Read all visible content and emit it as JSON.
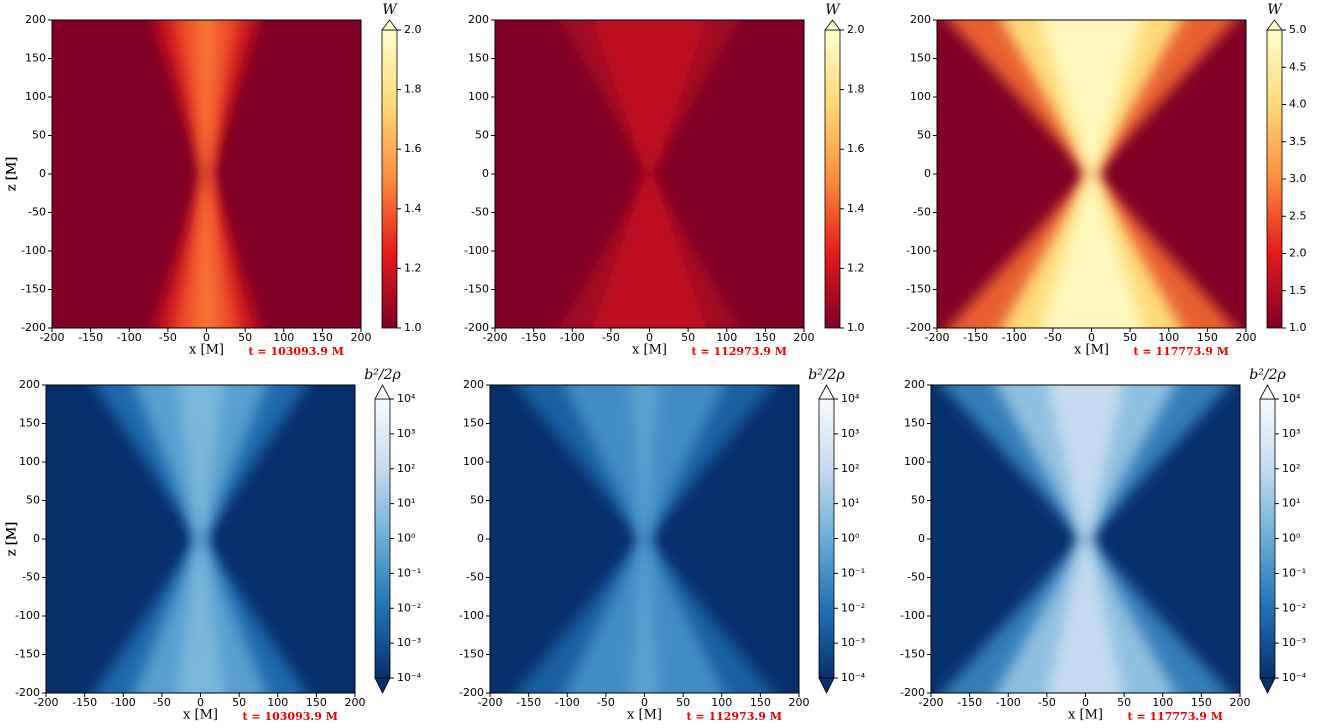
{
  "chart_data": [
    {
      "type": "image",
      "xlabel": "x [M]",
      "ylabel": "z [M]",
      "annotation": "t = 103093.9 M",
      "xlim": [
        -200,
        200
      ],
      "ylim": [
        -200,
        200
      ],
      "xticks": [
        -200,
        -150,
        -100,
        -50,
        0,
        50,
        100,
        150,
        200
      ],
      "yticks": [
        -200,
        -150,
        -100,
        -50,
        0,
        50,
        100,
        150,
        200
      ],
      "colorbar": {
        "label": "W",
        "lim": [
          1.0,
          2.0
        ],
        "log": false,
        "extend": "max",
        "colors": [
          "#800026",
          "#e31a1c",
          "#fd8d3c",
          "#fed976",
          "#ffffcc"
        ],
        "ticks": [
          {
            "value": 1.0,
            "label": "1.0"
          },
          {
            "value": 1.2,
            "label": "1.2"
          },
          {
            "value": 1.4,
            "label": "1.4"
          },
          {
            "value": 1.6,
            "label": "1.6"
          },
          {
            "value": 1.8,
            "label": "1.8"
          },
          {
            "value": 2.0,
            "label": "2.0"
          }
        ]
      }
    },
    {
      "type": "image",
      "xlabel": "x [M]",
      "ylabel": "z [M]",
      "annotation": "t = 112973.9 M",
      "xlim": [
        -200,
        200
      ],
      "ylim": [
        -200,
        200
      ],
      "xticks": [
        -200,
        -150,
        -100,
        -50,
        0,
        50,
        100,
        150,
        200
      ],
      "yticks": [
        -200,
        -150,
        -100,
        -50,
        0,
        50,
        100,
        150,
        200
      ],
      "colorbar": {
        "label": "W",
        "lim": [
          1.0,
          2.0
        ],
        "log": false,
        "extend": "max",
        "colors": [
          "#800026",
          "#e31a1c",
          "#fd8d3c",
          "#fed976",
          "#ffffcc"
        ],
        "ticks": [
          {
            "value": 1.0,
            "label": "1.0"
          },
          {
            "value": 1.2,
            "label": "1.2"
          },
          {
            "value": 1.4,
            "label": "1.4"
          },
          {
            "value": 1.6,
            "label": "1.6"
          },
          {
            "value": 1.8,
            "label": "1.8"
          },
          {
            "value": 2.0,
            "label": "2.0"
          }
        ]
      }
    },
    {
      "type": "image",
      "xlabel": "x [M]",
      "ylabel": "z [M]",
      "annotation": "t = 117773.9 M",
      "xlim": [
        -200,
        200
      ],
      "ylim": [
        -200,
        200
      ],
      "xticks": [
        -200,
        -150,
        -100,
        -50,
        0,
        50,
        100,
        150,
        200
      ],
      "yticks": [
        -200,
        -150,
        -100,
        -50,
        0,
        50,
        100,
        150,
        200
      ],
      "colorbar": {
        "label": "W",
        "lim": [
          1.0,
          5.0
        ],
        "log": false,
        "extend": "max",
        "colors": [
          "#800026",
          "#e31a1c",
          "#fd8d3c",
          "#fed976",
          "#ffffcc"
        ],
        "ticks": [
          {
            "value": 1.0,
            "label": "1.0"
          },
          {
            "value": 1.5,
            "label": "1.5"
          },
          {
            "value": 2.0,
            "label": "2.0"
          },
          {
            "value": 2.5,
            "label": "2.5"
          },
          {
            "value": 3.0,
            "label": "3.0"
          },
          {
            "value": 3.5,
            "label": "3.5"
          },
          {
            "value": 4.0,
            "label": "4.0"
          },
          {
            "value": 4.5,
            "label": "4.5"
          },
          {
            "value": 5.0,
            "label": "5.0"
          }
        ]
      }
    },
    {
      "type": "image",
      "xlabel": "x [M]",
      "ylabel": "z [M]",
      "annotation": "t = 103093.9 M",
      "xlim": [
        -200,
        200
      ],
      "ylim": [
        -200,
        200
      ],
      "xticks": [
        -200,
        -150,
        -100,
        -50,
        0,
        50,
        100,
        150,
        200
      ],
      "yticks": [
        -200,
        -150,
        -100,
        -50,
        0,
        50,
        100,
        150,
        200
      ],
      "colorbar": {
        "label": "b²/2ρ",
        "lim": [
          0.0001,
          10000
        ],
        "log": true,
        "extend": "both",
        "colors": [
          "#08306b",
          "#2171b5",
          "#6baed6",
          "#c6dbef",
          "#f7fbff"
        ],
        "ticks": [
          {
            "value": 0.0001,
            "label": "10⁻⁴"
          },
          {
            "value": 0.001,
            "label": "10⁻³"
          },
          {
            "value": 0.01,
            "label": "10⁻²"
          },
          {
            "value": 0.1,
            "label": "10⁻¹"
          },
          {
            "value": 1,
            "label": "10⁰"
          },
          {
            "value": 10,
            "label": "10¹"
          },
          {
            "value": 100,
            "label": "10²"
          },
          {
            "value": 1000,
            "label": "10³"
          },
          {
            "value": 10000,
            "label": "10⁴"
          }
        ]
      }
    },
    {
      "type": "image",
      "xlabel": "x [M]",
      "ylabel": "z [M]",
      "annotation": "t = 112973.9 M",
      "xlim": [
        -200,
        200
      ],
      "ylim": [
        -200,
        200
      ],
      "xticks": [
        -200,
        -150,
        -100,
        -50,
        0,
        50,
        100,
        150,
        200
      ],
      "yticks": [
        -200,
        -150,
        -100,
        -50,
        0,
        50,
        100,
        150,
        200
      ],
      "colorbar": {
        "label": "b²/2ρ",
        "lim": [
          0.0001,
          10000
        ],
        "log": true,
        "extend": "both",
        "colors": [
          "#08306b",
          "#2171b5",
          "#6baed6",
          "#c6dbef",
          "#f7fbff"
        ],
        "ticks": [
          {
            "value": 0.0001,
            "label": "10⁻⁴"
          },
          {
            "value": 0.001,
            "label": "10⁻³"
          },
          {
            "value": 0.01,
            "label": "10⁻²"
          },
          {
            "value": 0.1,
            "label": "10⁻¹"
          },
          {
            "value": 1,
            "label": "10⁰"
          },
          {
            "value": 10,
            "label": "10¹"
          },
          {
            "value": 100,
            "label": "10²"
          },
          {
            "value": 1000,
            "label": "10³"
          },
          {
            "value": 10000,
            "label": "10⁴"
          }
        ]
      }
    },
    {
      "type": "image",
      "xlabel": "x [M]",
      "ylabel": "z [M]",
      "annotation": "t = 117773.9 M",
      "xlim": [
        -200,
        200
      ],
      "ylim": [
        -200,
        200
      ],
      "xticks": [
        -200,
        -150,
        -100,
        -50,
        0,
        50,
        100,
        150,
        200
      ],
      "yticks": [
        -200,
        -150,
        -100,
        -50,
        0,
        50,
        100,
        150,
        200
      ],
      "colorbar": {
        "label": "b²/2ρ",
        "lim": [
          0.0001,
          10000
        ],
        "log": true,
        "extend": "both",
        "colors": [
          "#08306b",
          "#2171b5",
          "#6baed6",
          "#c6dbef",
          "#f7fbff"
        ],
        "ticks": [
          {
            "value": 0.0001,
            "label": "10⁻⁴"
          },
          {
            "value": 0.001,
            "label": "10⁻³"
          },
          {
            "value": 0.01,
            "label": "10⁻²"
          },
          {
            "value": 0.1,
            "label": "10⁻¹"
          },
          {
            "value": 1,
            "label": "10⁰"
          },
          {
            "value": 10,
            "label": "10¹"
          },
          {
            "value": 100,
            "label": "10²"
          },
          {
            "value": 1000,
            "label": "10³"
          },
          {
            "value": 10000,
            "label": "10⁴"
          }
        ]
      }
    }
  ]
}
